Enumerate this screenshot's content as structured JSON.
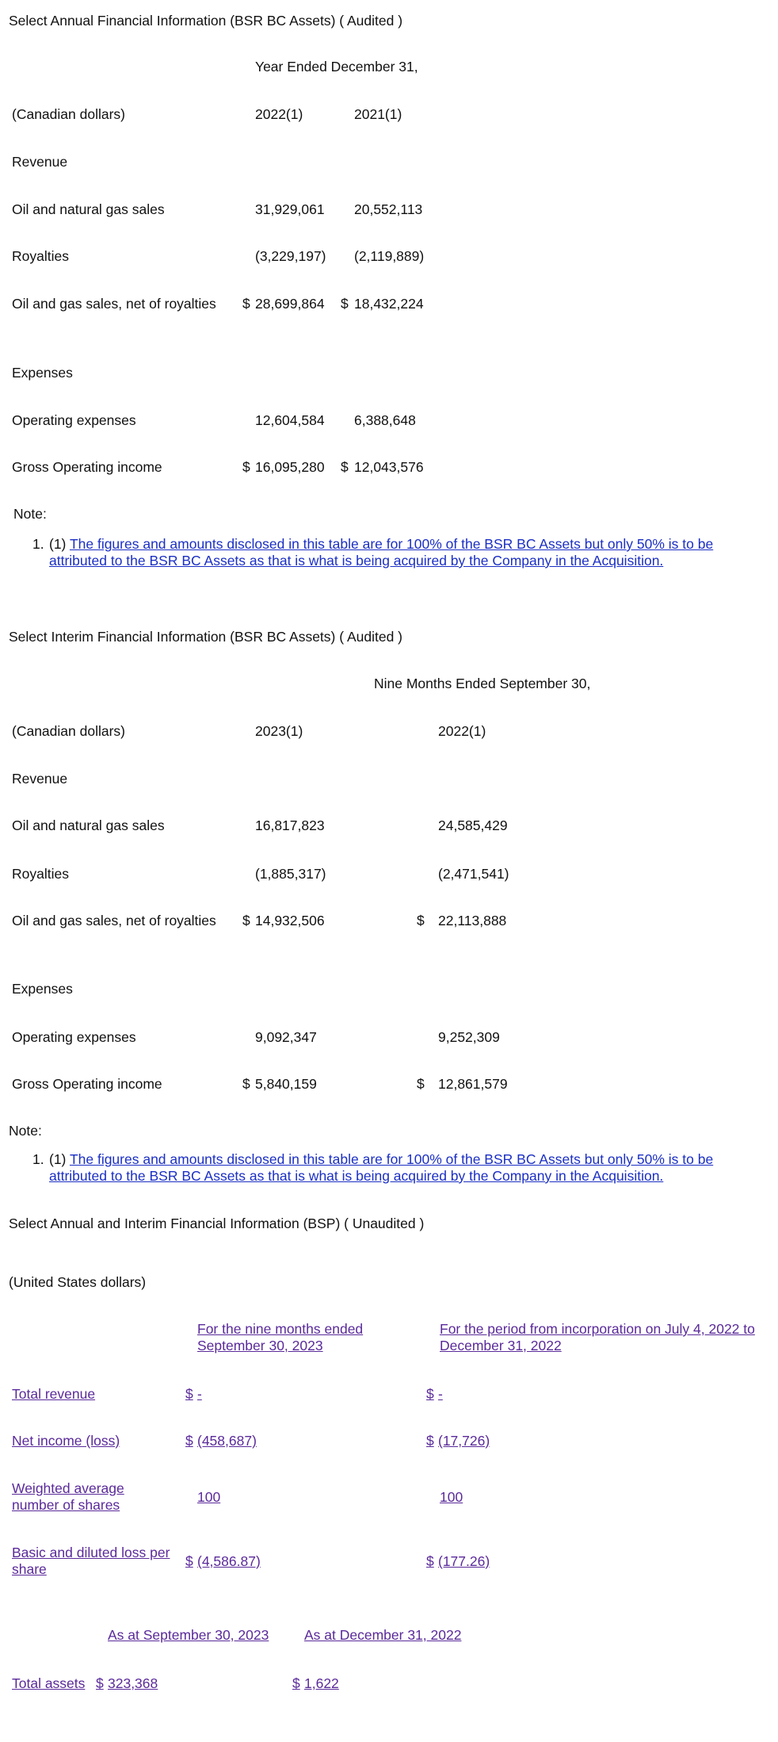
{
  "annual": {
    "title": "Select Annual Financial Information (BSR BC Assets) ( Audited )",
    "period_header": "Year Ended December 31,",
    "currency_label": "(Canadian dollars)",
    "columns": [
      "2022(1)",
      "2021(1)"
    ],
    "rows": [
      {
        "label": "Revenue"
      },
      {
        "label": "Oil and natural gas sales",
        "values": [
          "31,929,061",
          "20,552,113"
        ]
      },
      {
        "label": "Royalties",
        "values": [
          "(3,229,197)",
          "(2,119,889)"
        ]
      },
      {
        "label": "Oil and gas sales, net of royalties",
        "currency": "$",
        "values": [
          "28,699,864",
          "18,432,224"
        ]
      },
      {
        "label": "Expenses"
      },
      {
        "label": "Operating expenses",
        "values": [
          "12,604,584",
          "6,388,648"
        ]
      },
      {
        "label": "Gross Operating income",
        "currency": "$",
        "values": [
          "16,095,280",
          "12,043,576"
        ]
      }
    ],
    "note_label": "Note:",
    "note_number": "1.",
    "note_marker": "(1)",
    "note_text": "The figures and amounts disclosed in this table are for 100% of the BSR BC Assets but only 50% is to be attributed to the BSR BC Assets as that is what is being acquired by the Company in the Acquisition. "
  },
  "interim": {
    "title": "Select Interim Financial Information (BSR BC Assets) ( Audited )",
    "period_header": "Nine Months Ended September 30,",
    "currency_label": "(Canadian dollars)",
    "columns": [
      "2023(1)",
      "2022(1)"
    ],
    "rows": [
      {
        "label": "Revenue"
      },
      {
        "label": "Oil and natural gas sales",
        "values": [
          "16,817,823",
          "24,585,429"
        ]
      },
      {
        "label": "Royalties",
        "values": [
          "(1,885,317)",
          "(2,471,541)"
        ]
      },
      {
        "label": "Oil and gas sales, net of royalties",
        "currency": "$",
        "values": [
          "14,932,506",
          "22,113,888"
        ]
      },
      {
        "label": "Expenses"
      },
      {
        "label": "Operating expenses",
        "values": [
          "9,092,347",
          "9,252,309"
        ]
      },
      {
        "label": "Gross Operating income",
        "currency": "$",
        "values": [
          "5,840,159",
          "12,861,579"
        ]
      }
    ],
    "note_label": "Note:",
    "note_number": "1.",
    "note_marker": "(1)",
    "note_text": "The figures and amounts disclosed in this table are for 100% of the BSR BC Assets but only 50% is to be attributed to the BSR BC Assets as that is what is being acquired by the Company in the Acquisition. "
  },
  "bsp": {
    "title": "Select Annual and Interim Financial Information (BSP) ( Unaudited )",
    "currency_label": "(United States dollars)",
    "columns": [
      "For the nine  months ended September 30, 2023",
      "For the period from incorporation on July 4, 2022 to December 31, 2022"
    ],
    "rows": [
      {
        "label": "Total revenue",
        "values": [
          "-",
          "-"
        ],
        "currency": "$"
      },
      {
        "label": "Net income (loss)",
        "values": [
          "(458,687)",
          "(17,726)"
        ],
        "currency": "$"
      },
      {
        "label": "Weighted average number of shares",
        "values": [
          "100",
          "100"
        ]
      },
      {
        "label": "Basic and diluted loss per share",
        "values": [
          "(4,586.87)",
          "(177.26)"
        ],
        "currency": "$"
      }
    ],
    "balance_columns": [
      "As at September 30, 2023",
      "As at December 31, 2022"
    ],
    "balance_row": {
      "label": "Total assets",
      "currency": "$",
      "values": [
        "323,368",
        "1,622"
      ]
    }
  },
  "colors": {
    "link": "#1b2fc4",
    "visited_link": "#5a2a9a",
    "text": "#111111"
  }
}
